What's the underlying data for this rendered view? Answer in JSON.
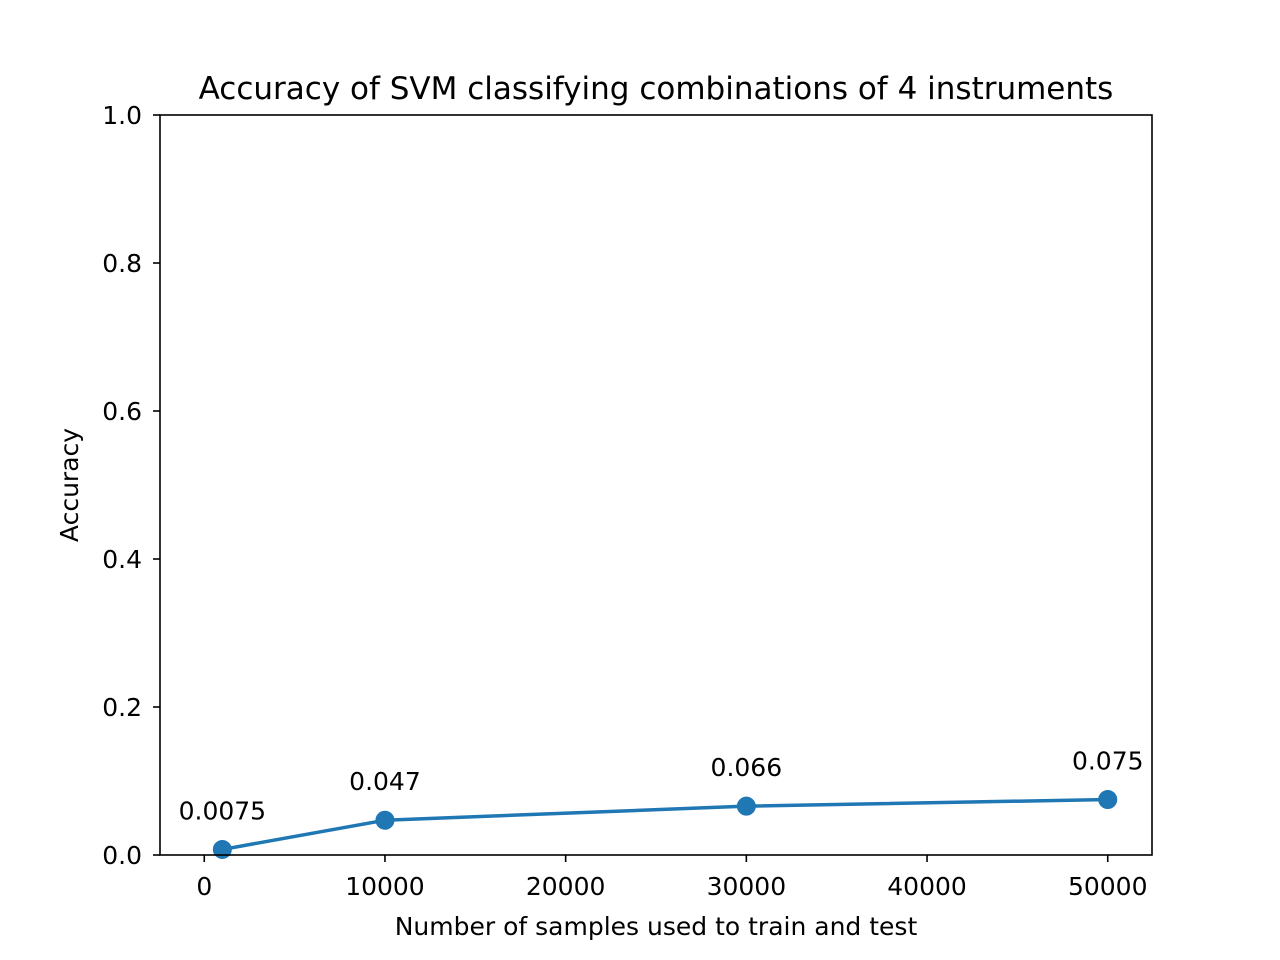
{
  "chart_data": {
    "type": "line",
    "title": "Accuracy of SVM classifying combinations of 4 instruments",
    "xlabel": "Number of samples used to train and test",
    "ylabel": "Accuracy",
    "xlim": [
      -2450,
      52450
    ],
    "ylim": [
      0,
      1
    ],
    "xticks": [
      0,
      10000,
      20000,
      30000,
      40000,
      50000
    ],
    "xtick_labels": [
      "0",
      "10000",
      "20000",
      "30000",
      "40000",
      "50000"
    ],
    "yticks": [
      0.0,
      0.2,
      0.4,
      0.6,
      0.8,
      1.0
    ],
    "ytick_labels": [
      "0.0",
      "0.2",
      "0.4",
      "0.6",
      "0.8",
      "1.0"
    ],
    "grid": false,
    "series": [
      {
        "x": [
          1000,
          10000,
          30000,
          50000
        ],
        "y": [
          0.0075,
          0.047,
          0.066,
          0.075
        ],
        "labels": [
          "0.0075",
          "0.047",
          "0.066",
          "0.075"
        ],
        "color": "#1f77b4",
        "marker": "circle"
      }
    ]
  }
}
